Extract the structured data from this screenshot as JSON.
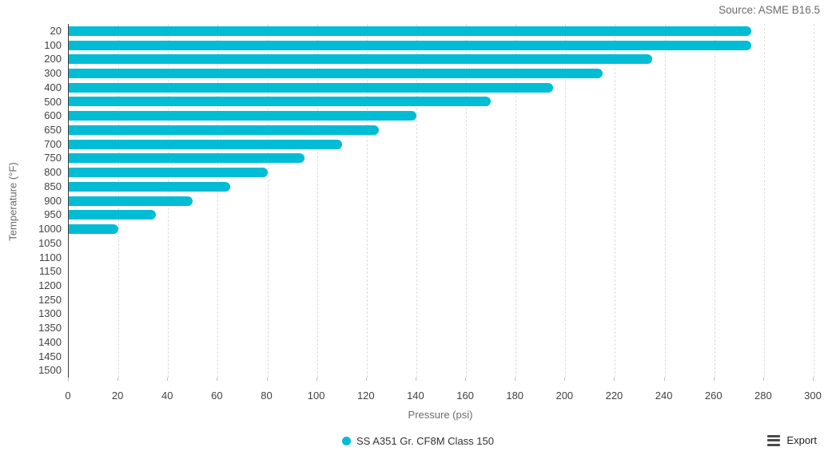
{
  "source_note": "Source: ASME B16.5",
  "export_button": {
    "label": "Export"
  },
  "legend": {
    "items": [
      {
        "label": "SS A351 Gr. CF8M Class 150",
        "color": "#00bcd4"
      }
    ]
  },
  "chart_data": {
    "type": "bar",
    "orientation": "horizontal",
    "title": "",
    "xlabel": "Pressure (psi)",
    "ylabel": "Temperature (°F)",
    "source": "ASME B16.5",
    "categories": [
      20,
      100,
      200,
      300,
      400,
      500,
      600,
      650,
      700,
      750,
      800,
      850,
      900,
      950,
      1000,
      1050,
      1100,
      1150,
      1200,
      1250,
      1300,
      1350,
      1400,
      1450,
      1500
    ],
    "series": [
      {
        "name": "SS A351 Gr. CF8M Class 150",
        "color": "#00bcd4",
        "values": [
          275,
          275,
          235,
          215,
          195,
          170,
          140,
          125,
          110,
          95,
          80,
          65,
          50,
          35,
          20,
          0,
          0,
          0,
          0,
          0,
          0,
          0,
          0,
          0,
          0
        ]
      }
    ],
    "xlim": [
      0,
      300
    ],
    "xtick_step": 20,
    "grid": "vertical-dashed",
    "legend_position": "bottom"
  },
  "colors": {
    "bar": "#00bcd4",
    "axis_line": "#3d3d3d",
    "gridline": "#dedede",
    "tick_label": "#424242",
    "axis_title": "#6b6b6b",
    "source_text": "#6b6b6b"
  }
}
